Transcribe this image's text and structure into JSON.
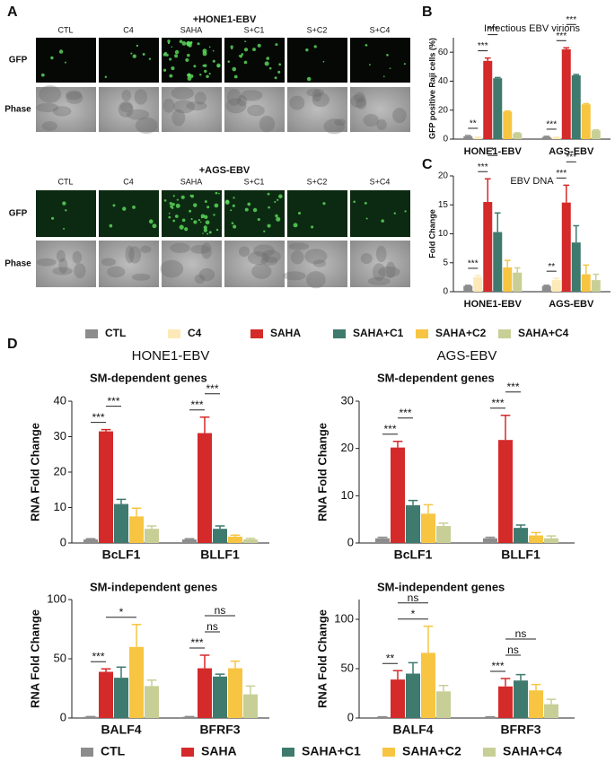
{
  "panel_labels": [
    "A",
    "B",
    "C",
    "D"
  ],
  "panel_a": {
    "panels": [
      {
        "title": "+HONE1-EBV",
        "columns": [
          "CTL",
          "C4",
          "SAHA",
          "S+C1",
          "S+C2",
          "S+C4"
        ],
        "rows": [
          "GFP",
          "Phase"
        ]
      },
      {
        "title": "+AGS-EBV",
        "columns": [
          "CTL",
          "C4",
          "SAHA",
          "S+C1",
          "S+C2",
          "S+C4"
        ],
        "rows": [
          "GFP",
          "Phase"
        ]
      }
    ]
  },
  "chart_data": [
    {
      "type": "bar",
      "title": "Infectious EBV virions",
      "ylabel": "GFP positive Raji cells (%)",
      "categories": [
        "HONE1-EBV",
        "AGS-EBV"
      ],
      "ylim": [
        0,
        70
      ],
      "yticks": [
        0,
        20,
        40,
        60
      ],
      "series": [
        {
          "name": "CTL",
          "color": "#8c8c8c",
          "values": [
            2,
            1.5
          ],
          "errors": [
            0.5,
            0.4
          ]
        },
        {
          "name": "C4",
          "color": "#fde9b8",
          "values": [
            1,
            1
          ],
          "errors": [
            0.3,
            0.3
          ]
        },
        {
          "name": "SAHA",
          "color": "#d42a2a",
          "values": [
            54,
            62
          ],
          "errors": [
            2,
            1
          ]
        },
        {
          "name": "SAHA+C1",
          "color": "#3f7a6e",
          "values": [
            42,
            44
          ],
          "errors": [
            0.5,
            0.6
          ]
        },
        {
          "name": "SAHA+C2",
          "color": "#f7c542",
          "values": [
            19,
            24
          ],
          "errors": [
            0.4,
            0.5
          ]
        },
        {
          "name": "SAHA+C4",
          "color": "#c8cf96",
          "values": [
            4,
            6
          ],
          "errors": [
            0.3,
            0.4
          ]
        }
      ],
      "annotations": [
        {
          "text": "**",
          "group": 0,
          "from": 0,
          "to": 1
        },
        {
          "text": "***",
          "group": 0,
          "from": 1,
          "to": 2
        },
        {
          "text": "***",
          "group": 0,
          "from": 2,
          "to": 3
        },
        {
          "text": "***",
          "group": 1,
          "from": 0,
          "to": 1
        },
        {
          "text": "***",
          "group": 1,
          "from": 1,
          "to": 2
        },
        {
          "text": "***",
          "group": 1,
          "from": 2,
          "to": 3
        }
      ]
    },
    {
      "type": "bar",
      "title": "EBV  DNA",
      "ylabel": "Fold Change",
      "categories": [
        "HONE1-EBV",
        "AGS-EBV"
      ],
      "ylim": [
        0,
        20
      ],
      "yticks": [
        0,
        5,
        10,
        15,
        20
      ],
      "series": [
        {
          "name": "CTL",
          "color": "#8c8c8c",
          "values": [
            1,
            1
          ],
          "errors": [
            0.1,
            0.1
          ]
        },
        {
          "name": "C4",
          "color": "#fde9b8",
          "values": [
            2.5,
            2
          ],
          "errors": [
            0.3,
            0.3
          ]
        },
        {
          "name": "SAHA",
          "color": "#d42a2a",
          "values": [
            15.5,
            15.4
          ],
          "errors": [
            4,
            3
          ]
        },
        {
          "name": "SAHA+C1",
          "color": "#3f7a6e",
          "values": [
            10.3,
            8.5
          ],
          "errors": [
            3.3,
            2.9
          ]
        },
        {
          "name": "SAHA+C2",
          "color": "#f7c542",
          "values": [
            4.2,
            3
          ],
          "errors": [
            1.2,
            1.6
          ]
        },
        {
          "name": "SAHA+C4",
          "color": "#c8cf96",
          "values": [
            3.3,
            2
          ],
          "errors": [
            0.8,
            1
          ]
        }
      ],
      "annotations": [
        {
          "text": "***",
          "group": 0,
          "from": 0,
          "to": 1
        },
        {
          "text": "***",
          "group": 0,
          "from": 1,
          "to": 2
        },
        {
          "text": "*",
          "group": 0,
          "from": 2,
          "to": 3
        },
        {
          "text": "**",
          "group": 1,
          "from": 0,
          "to": 1
        },
        {
          "text": "***",
          "group": 1,
          "from": 1,
          "to": 2
        },
        {
          "text": "***",
          "group": 1,
          "from": 2,
          "to": 3
        }
      ]
    },
    {
      "type": "bar",
      "title": "HONE1-EBV",
      "subtitle": "SM-dependent genes",
      "ylabel": "RNA Fold Change",
      "categories": [
        "BcLF1",
        "BLLF1"
      ],
      "ylim": [
        0,
        40
      ],
      "yticks": [
        0,
        10,
        20,
        30,
        40
      ],
      "series": [
        {
          "name": "CTL",
          "color": "#8c8c8c",
          "values": [
            1,
            1
          ],
          "errors": [
            0.2,
            0.2
          ]
        },
        {
          "name": "SAHA",
          "color": "#d42a2a",
          "values": [
            31.5,
            31
          ],
          "errors": [
            0.5,
            4.5
          ]
        },
        {
          "name": "SAHA+C1",
          "color": "#3f7a6e",
          "values": [
            11,
            4
          ],
          "errors": [
            1.3,
            0.8
          ]
        },
        {
          "name": "SAHA+C2",
          "color": "#f7c542",
          "values": [
            7.5,
            1.8
          ],
          "errors": [
            2.3,
            0.4
          ]
        },
        {
          "name": "SAHA+C4",
          "color": "#c8cf96",
          "values": [
            4,
            1
          ],
          "errors": [
            0.8,
            0.3
          ]
        }
      ],
      "annotations": [
        {
          "text": "***",
          "group": 0,
          "from": 0,
          "to": 1
        },
        {
          "text": "***",
          "group": 0,
          "from": 1,
          "to": 2
        },
        {
          "text": "***",
          "group": 1,
          "from": 0,
          "to": 1
        },
        {
          "text": "***",
          "group": 1,
          "from": 1,
          "to": 2
        }
      ]
    },
    {
      "type": "bar",
      "title": "AGS-EBV",
      "subtitle": "SM-dependent genes",
      "ylabel": "RNA Fold Change",
      "categories": [
        "BcLF1",
        "BLLF1"
      ],
      "ylim": [
        0,
        30
      ],
      "yticks": [
        0,
        10,
        20,
        30
      ],
      "series": [
        {
          "name": "CTL",
          "color": "#8c8c8c",
          "values": [
            1,
            1
          ],
          "errors": [
            0.2,
            0.2
          ]
        },
        {
          "name": "SAHA",
          "color": "#d42a2a",
          "values": [
            20.2,
            21.8
          ],
          "errors": [
            1.3,
            5.2
          ]
        },
        {
          "name": "SAHA+C1",
          "color": "#3f7a6e",
          "values": [
            8,
            3.2
          ],
          "errors": [
            1,
            0.6
          ]
        },
        {
          "name": "SAHA+C2",
          "color": "#f7c542",
          "values": [
            6.2,
            1.6
          ],
          "errors": [
            1.9,
            0.6
          ]
        },
        {
          "name": "SAHA+C4",
          "color": "#c8cf96",
          "values": [
            3.6,
            1
          ],
          "errors": [
            0.6,
            0.5
          ]
        }
      ],
      "annotations": [
        {
          "text": "***",
          "group": 0,
          "from": 0,
          "to": 1
        },
        {
          "text": "***",
          "group": 0,
          "from": 1,
          "to": 2
        },
        {
          "text": "***",
          "group": 1,
          "from": 0,
          "to": 1
        },
        {
          "text": "***",
          "group": 1,
          "from": 1,
          "to": 2
        }
      ]
    },
    {
      "type": "bar",
      "subtitle": "SM-independent genes",
      "ylabel": "RNA Fold Change",
      "categories": [
        "BALF4",
        "BFRF3"
      ],
      "ylim": [
        0,
        100
      ],
      "yticks": [
        0,
        50,
        100
      ],
      "series": [
        {
          "name": "CTL",
          "color": "#8c8c8c",
          "values": [
            1,
            1
          ],
          "errors": [
            0.2,
            0.2
          ]
        },
        {
          "name": "SAHA",
          "color": "#d42a2a",
          "values": [
            39,
            42
          ],
          "errors": [
            2.5,
            11
          ]
        },
        {
          "name": "SAHA+C1",
          "color": "#3f7a6e",
          "values": [
            34,
            35
          ],
          "errors": [
            9,
            2
          ]
        },
        {
          "name": "SAHA+C2",
          "color": "#f7c542",
          "values": [
            60,
            42
          ],
          "errors": [
            19,
            6
          ]
        },
        {
          "name": "SAHA+C4",
          "color": "#c8cf96",
          "values": [
            27,
            20
          ],
          "errors": [
            5,
            7
          ]
        }
      ],
      "annotations": [
        {
          "text": "***",
          "group": 0,
          "from": 0,
          "to": 1
        },
        {
          "text": "*",
          "group": 0,
          "from": 1,
          "to": 3
        },
        {
          "text": "***",
          "group": 1,
          "from": 0,
          "to": 1
        },
        {
          "text": "ns",
          "group": 1,
          "from": 1,
          "to": 2
        },
        {
          "text": "ns",
          "group": 1,
          "from": 1,
          "to": 3
        }
      ]
    },
    {
      "type": "bar",
      "subtitle": "SM-independent genes",
      "ylabel": "RNA Fold Change",
      "categories": [
        "BALF4",
        "BFRF3"
      ],
      "ylim": [
        0,
        120
      ],
      "yticks": [
        0,
        50,
        100
      ],
      "series": [
        {
          "name": "CTL",
          "color": "#8c8c8c",
          "values": [
            1,
            1
          ],
          "errors": [
            0.2,
            0.2
          ]
        },
        {
          "name": "SAHA",
          "color": "#d42a2a",
          "values": [
            39,
            32
          ],
          "errors": [
            9,
            8
          ]
        },
        {
          "name": "SAHA+C1",
          "color": "#3f7a6e",
          "values": [
            45,
            38
          ],
          "errors": [
            11,
            6
          ]
        },
        {
          "name": "SAHA+C2",
          "color": "#f7c542",
          "values": [
            66,
            28
          ],
          "errors": [
            27,
            6
          ]
        },
        {
          "name": "SAHA+C4",
          "color": "#c8cf96",
          "values": [
            27,
            14
          ],
          "errors": [
            6,
            5
          ]
        }
      ],
      "annotations": [
        {
          "text": "**",
          "group": 0,
          "from": 0,
          "to": 1
        },
        {
          "text": "*",
          "group": 0,
          "from": 1,
          "to": 3
        },
        {
          "text": "ns",
          "group": 0,
          "from": 1,
          "to": 3
        },
        {
          "text": "***",
          "group": 1,
          "from": 0,
          "to": 1
        },
        {
          "text": "ns",
          "group": 1,
          "from": 1,
          "to": 2
        },
        {
          "text": "ns",
          "group": 1,
          "from": 1,
          "to": 3
        }
      ]
    }
  ]
}
